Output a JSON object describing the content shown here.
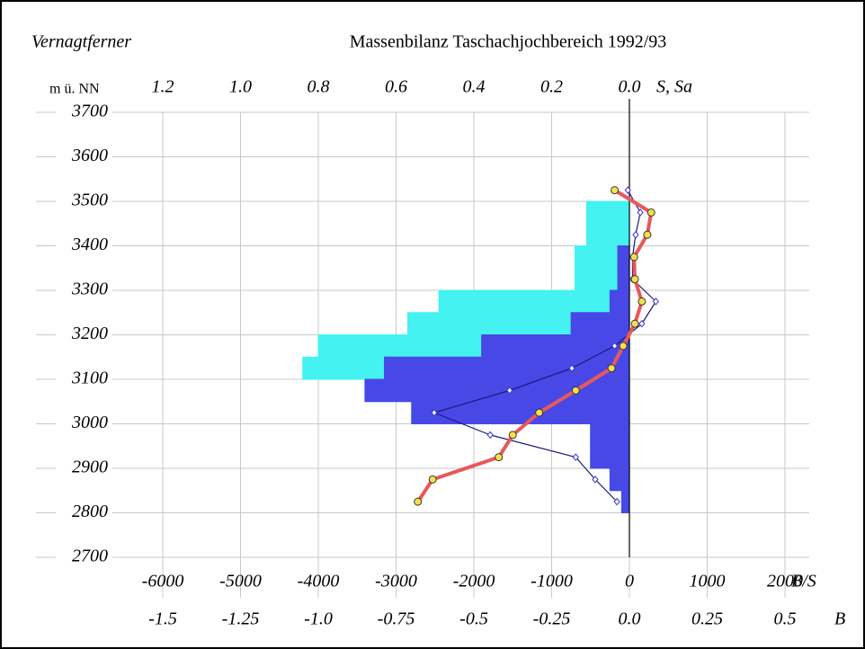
{
  "chart_data": {
    "type": "profile",
    "title": "Massenbilanz Taschachjochbereich 1992/93",
    "subtitle": "Vernagtferner",
    "y_label": "m ü. NN",
    "x_label": "B/S",
    "x2_label": "B",
    "x3_label": "S, Sa",
    "ylim": [
      2700,
      3700
    ],
    "yticks": [
      2700,
      2800,
      2900,
      3000,
      3100,
      3200,
      3300,
      3400,
      3500,
      3600,
      3700
    ],
    "xlim": [
      -6000,
      2000
    ],
    "xticks": [
      -6000,
      -5000,
      -4000,
      -3000,
      -2000,
      -1000,
      0,
      1000,
      2000
    ],
    "x2lim": [
      -1.5,
      0.5
    ],
    "x2ticks": [
      -1.5,
      -1.25,
      {
        "value": -1.0,
        "label": "-1.0"
      },
      -0.75,
      -0.5,
      -0.25,
      {
        "value": 0.0,
        "label": "0.0"
      },
      0.25,
      0.5
    ],
    "x3lim": [
      1.2,
      0.0
    ],
    "x3ticks": [
      1.2,
      {
        "value": 1.0,
        "label": "1.0"
      },
      0.8,
      0.6,
      0.4,
      0.2,
      {
        "value": 0.0,
        "label": "0.0"
      }
    ],
    "grid": true,
    "bands": [
      2800,
      2850,
      2900,
      2950,
      3000,
      3050,
      3100,
      3150,
      3200,
      3250,
      3300,
      3350,
      3400,
      3450,
      3500
    ],
    "areas": [
      {
        "color": "#44f2f2",
        "values": [
          -100,
          -250,
          -500,
          -500,
          -2800,
          -3400,
          -4200,
          -4000,
          -2850,
          -2450,
          -700,
          -700,
          -550,
          -550
        ]
      },
      {
        "color": "#4848e6",
        "values": [
          -100,
          -250,
          -500,
          -500,
          -2800,
          -3400,
          -3150,
          -1900,
          -750,
          -250,
          -150,
          -150,
          null,
          null
        ]
      }
    ],
    "y": [
      3525,
      3475,
      3425,
      3375,
      3325,
      3275,
      3225,
      3175,
      3125,
      3075,
      3025,
      2975,
      2925,
      2875,
      2825
    ],
    "series": [
      {
        "color": "#1a1a80",
        "marker": "diamond",
        "values": [
          -20,
          140,
          80,
          40,
          40,
          340,
          160,
          -190,
          -740,
          -1540,
          -2510,
          -1790,
          -690,
          -440,
          -160
        ]
      },
      {
        "color": "#e8585a",
        "marker": "circle",
        "values": [
          -190,
          280,
          230,
          60,
          70,
          160,
          70,
          -80,
          -230,
          -690,
          -1160,
          -1500,
          -1680,
          -2530,
          -2720
        ]
      }
    ]
  }
}
